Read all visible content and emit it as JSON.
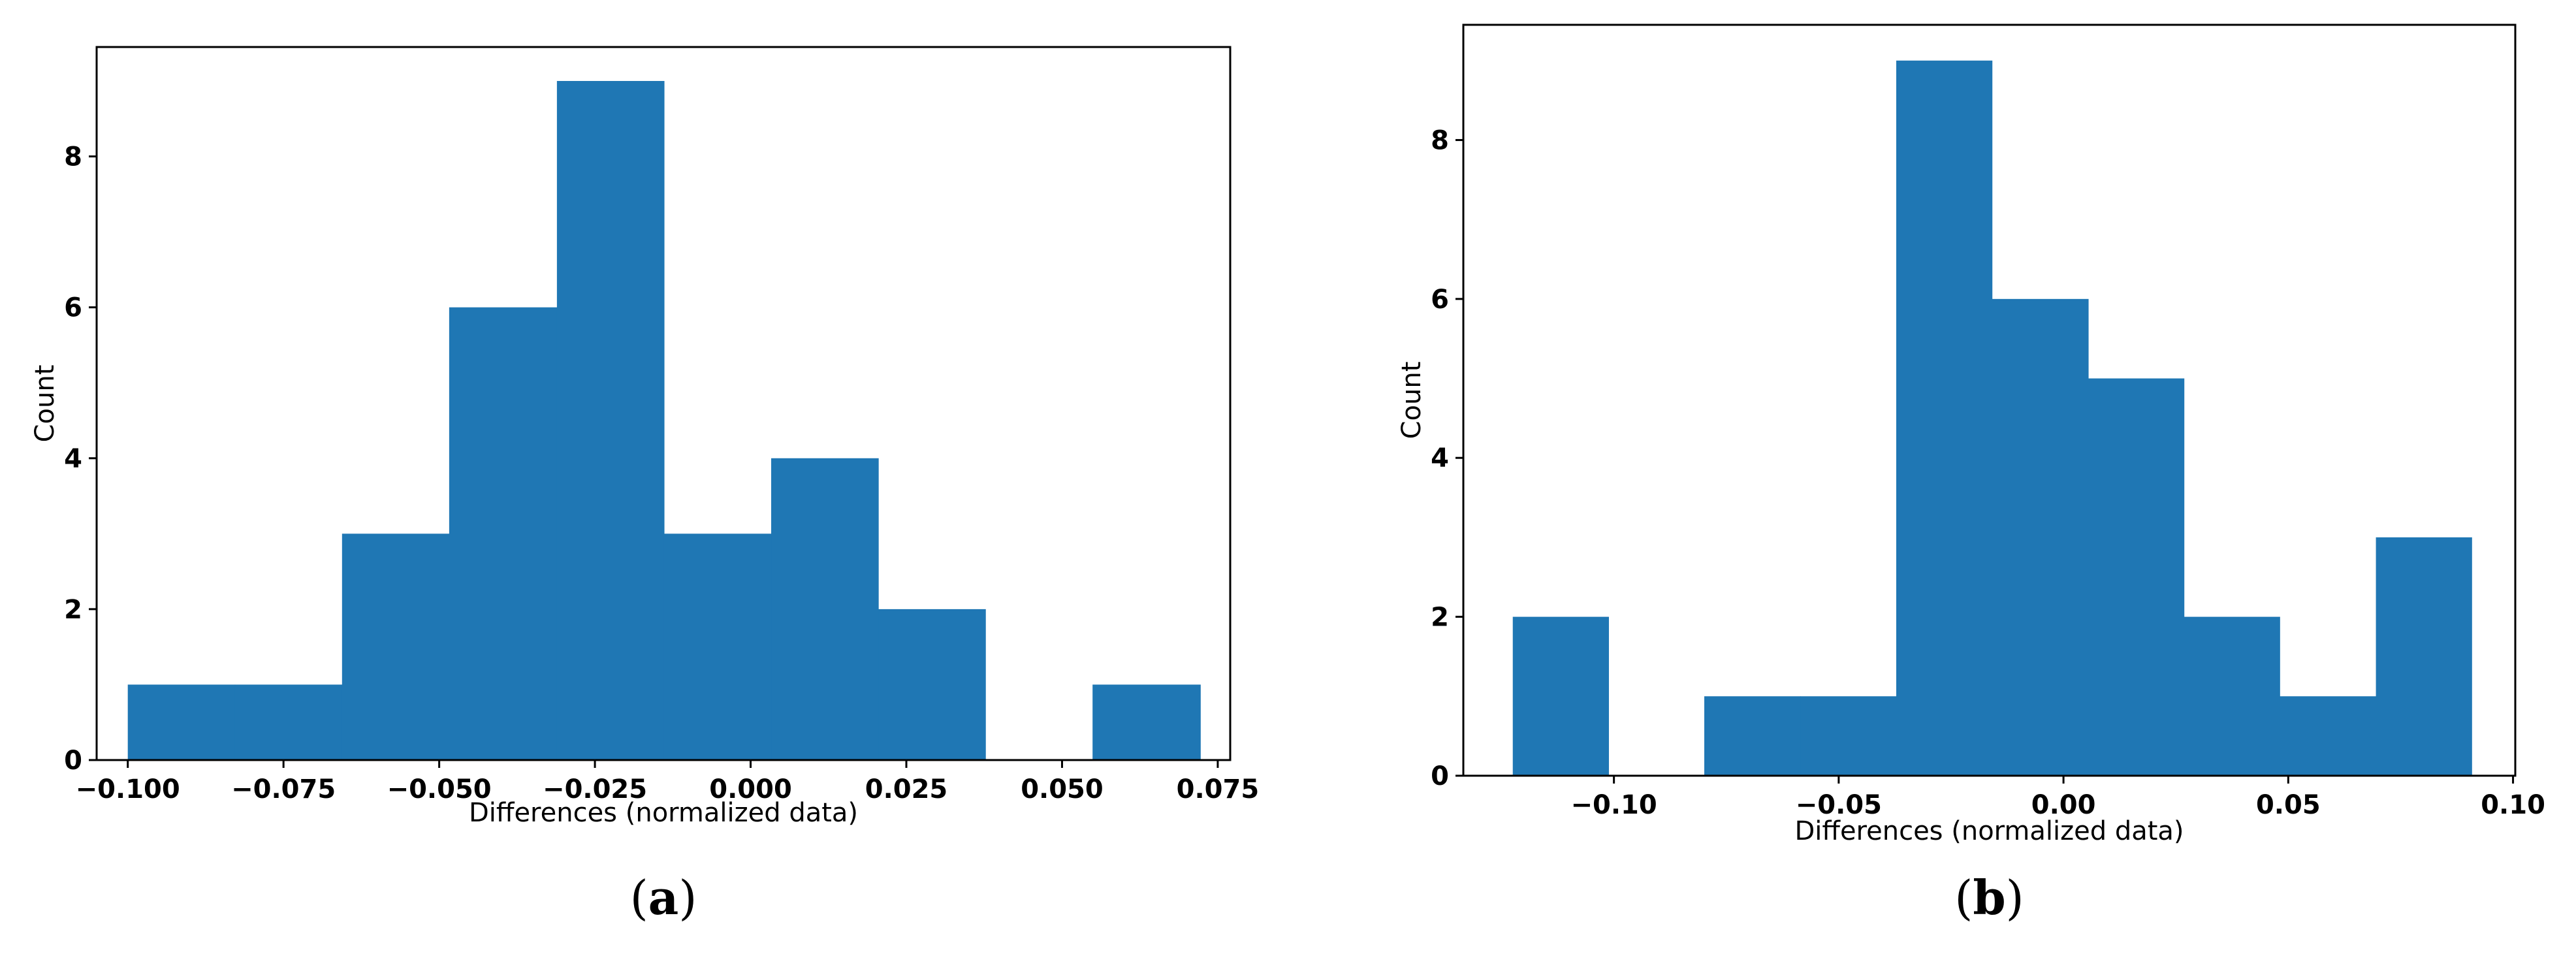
{
  "chart_data": [
    {
      "type": "bar",
      "panel": "a",
      "caption_letter": "a",
      "bar_color": "#1f77b4",
      "xlabel": "Differences (normalized data)",
      "ylabel": "Count",
      "xlim": [
        -0.105,
        0.077
      ],
      "ylim": [
        0,
        9.45
      ],
      "xticks": [
        -0.1,
        -0.075,
        -0.05,
        -0.025,
        0.0,
        0.025,
        0.05,
        0.075
      ],
      "xtick_labels": [
        "−0.100",
        "−0.075",
        "−0.050",
        "−0.025",
        "0.000",
        "0.025",
        "0.050",
        "0.075"
      ],
      "yticks": [
        0,
        2,
        4,
        6,
        8
      ],
      "ytick_labels": [
        "0",
        "2",
        "4",
        "6",
        "8"
      ],
      "bin_edges": [
        -0.1,
        -0.0828,
        -0.0656,
        -0.0484,
        -0.0311,
        -0.0139,
        0.0033,
        0.0205,
        0.0377,
        0.0549,
        0.0722
      ],
      "values": [
        1,
        1,
        3,
        6,
        9,
        3,
        4,
        2,
        0,
        1
      ]
    },
    {
      "type": "bar",
      "panel": "b",
      "caption_letter": "b",
      "bar_color": "#1f77b4",
      "xlabel": "Differences (normalized data)",
      "ylabel": "Count",
      "xlim": [
        -0.1335,
        0.1005
      ],
      "ylim": [
        0,
        9.45
      ],
      "xticks": [
        -0.1,
        -0.05,
        0.0,
        0.05,
        0.1
      ],
      "xtick_labels": [
        "−0.10",
        "−0.05",
        "0.00",
        "0.05",
        "0.10"
      ],
      "yticks": [
        0,
        2,
        4,
        6,
        8
      ],
      "ytick_labels": [
        "0",
        "2",
        "4",
        "6",
        "8"
      ],
      "bin_edges": [
        -0.1225,
        -0.1012,
        -0.0799,
        -0.0585,
        -0.0372,
        -0.0159,
        0.0055,
        0.0268,
        0.0481,
        0.0695,
        0.0908
      ],
      "values": [
        2,
        0,
        1,
        1,
        9,
        6,
        5,
        2,
        1,
        3
      ]
    }
  ]
}
